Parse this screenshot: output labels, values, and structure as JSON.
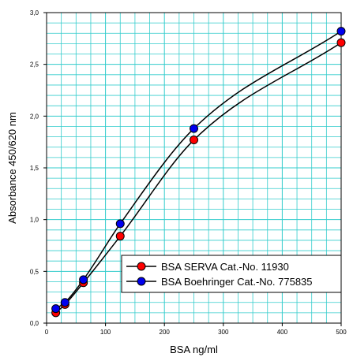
{
  "chart_data": {
    "type": "line",
    "xlabel": "BSA ng/ml",
    "ylabel": "Absorbance 450/620 nm",
    "xlim": [
      0,
      500
    ],
    "ylim": [
      0,
      3.0
    ],
    "x_ticks": [
      0,
      100,
      200,
      300,
      400,
      500
    ],
    "x_tick_labels": [
      "0",
      "100",
      "200",
      "300",
      "400",
      "500"
    ],
    "y_ticks": [
      0,
      0.5,
      1.0,
      1.5,
      2.0,
      2.5,
      3.0
    ],
    "y_tick_labels": [
      "0,0",
      "0,5",
      "1,0",
      "1,5",
      "2,0",
      "2,5",
      "3,0"
    ],
    "x_minor_step": 25,
    "y_minor_step": 0.1,
    "grid": true,
    "grid_color": "#33cccc",
    "legend_position": "bottom-right",
    "series": [
      {
        "name": "BSA SERVA Cat.-No. 11930",
        "color": "#ff0000",
        "x": [
          15.6,
          31.25,
          62.5,
          125,
          250,
          500
        ],
        "y": [
          0.1,
          0.18,
          0.39,
          0.84,
          1.77,
          2.71
        ]
      },
      {
        "name": "BSA Boehringer Cat.-No. 775835",
        "color": "#0000ee",
        "x": [
          15.6,
          31.25,
          62.5,
          125,
          250,
          500
        ],
        "y": [
          0.14,
          0.2,
          0.42,
          0.96,
          1.88,
          2.82
        ]
      }
    ]
  }
}
